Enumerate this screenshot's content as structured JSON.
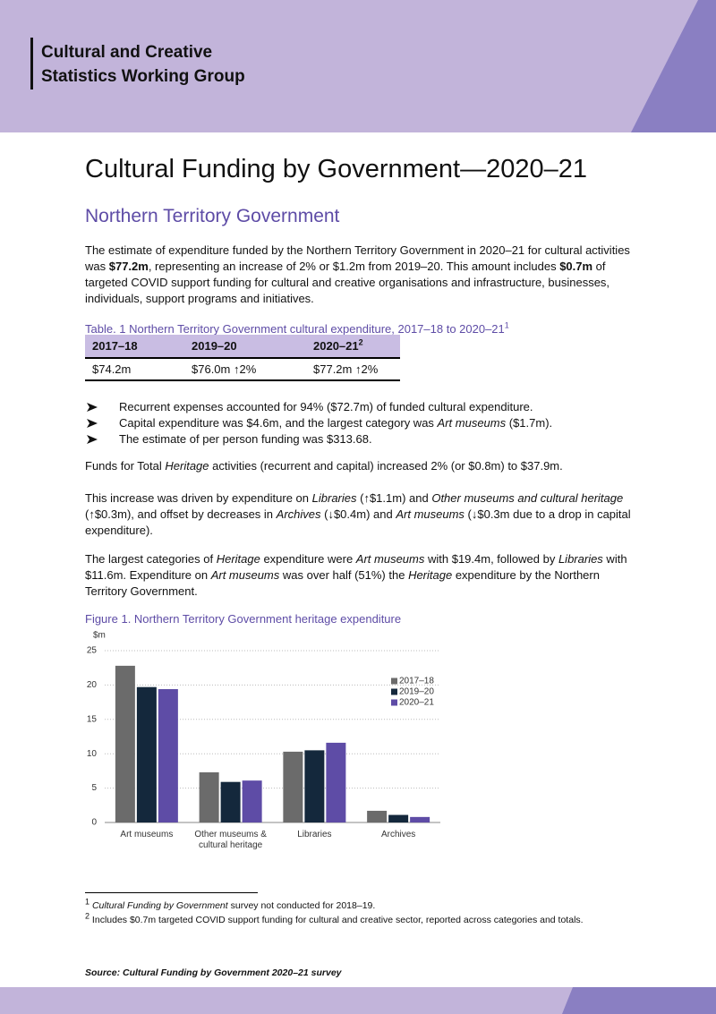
{
  "header": {
    "title_lines": [
      "Cultural and Creative",
      "Statistics Working Group"
    ]
  },
  "title": "Cultural Funding by Government—2020–21",
  "subtitle": "Northern Territory Government",
  "intro": [
    "The estimate of expenditure funded by the Northern Territory Government in 2020–21 for cultural activities was ",
    {
      "b": "$77.2m"
    },
    ", representing an increase of 2% or $1.2m from 2019–20. This amount includes ",
    {
      "b": "$0.7m"
    },
    " of targeted COVID support funding for cultural and creative organisations and infrastructure, businesses, individuals, support programs and initiatives."
  ],
  "table": {
    "caption": [
      "Table. 1 Northern Territory Government cultural expenditure, 2017–18 to 2020–21",
      {
        "sup": "1"
      }
    ],
    "header": [
      [
        "2017–18"
      ],
      [
        "2019–20"
      ],
      [
        "2020–21",
        {
          "sup": "2"
        }
      ]
    ],
    "rows": [
      [
        "$74.2m",
        "$76.0m ↑2%",
        "$77.2m ↑2%"
      ]
    ]
  },
  "bullets": [
    [
      "Recurrent expenses accounted for 94% ($72.7m) of funded cultural expenditure."
    ],
    [
      "Capital expenditure was $4.6m, and the largest category was ",
      {
        "i": "Art museums"
      },
      " ($1.7m)."
    ],
    [
      "The estimate of per person funding was $313.68."
    ]
  ],
  "paragraphs": [
    [
      "Funds for Total ",
      {
        "i": "Heritage"
      },
      " activities (recurrent and capital) increased 2% (or $0.8m) to $37.9m."
    ],
    [
      "This increase was driven by expenditure on ",
      {
        "i": "Libraries"
      },
      " (↑$1.1m) and ",
      {
        "i": "Other museums and cultural heritage"
      },
      " (↑$0.3m), and offset by decreases in ",
      {
        "i": "Archives"
      },
      " (↓$0.4m) and ",
      {
        "i": "Art museums"
      },
      " (↓$0.3m due to a drop in capital expenditure)."
    ],
    [
      "The largest categories of ",
      {
        "i": "Heritage"
      },
      " expenditure were ",
      {
        "i": "Art museums"
      },
      " with $19.4m, followed by ",
      {
        "i": "Libraries"
      },
      " with $11.6m. Expenditure on ",
      {
        "i": "Art museums"
      },
      " was over half (51%) the ",
      {
        "i": "Heritage"
      },
      " expenditure by the Northern Territory Government."
    ]
  ],
  "chart_data": {
    "type": "bar",
    "title": "Figure 1. Northern Territory Government heritage expenditure",
    "y_label": "$m",
    "categories": [
      "Art museums",
      "Other museums & cultural heritage",
      "Libraries",
      "Archives"
    ],
    "series": [
      {
        "name": "2017–18",
        "color": "#6b6b6b",
        "values": [
          22.8,
          7.3,
          10.3,
          1.7
        ]
      },
      {
        "name": "2019–20",
        "color": "#14283c",
        "values": [
          19.7,
          5.9,
          10.5,
          1.1
        ]
      },
      {
        "name": "2020–21",
        "color": "#5e4ca6",
        "values": [
          19.4,
          6.1,
          11.6,
          0.8
        ]
      }
    ],
    "ylim": [
      0,
      25
    ],
    "yticks": [
      0,
      5,
      10,
      15,
      20,
      25
    ],
    "grid": true,
    "legend": "right"
  },
  "footnotes": [
    [
      {
        "sup": "1"
      },
      " ",
      {
        "i": "Cultural Funding by Government"
      },
      " survey not conducted for 2018–19."
    ],
    [
      {
        "sup": "2"
      },
      " Includes $0.7m targeted COVID support funding for cultural and creative sector, reported across categories and totals."
    ]
  ],
  "source": [
    {
      "bi": "Source: Cultural Funding by Government 2020–21 survey"
    }
  ]
}
